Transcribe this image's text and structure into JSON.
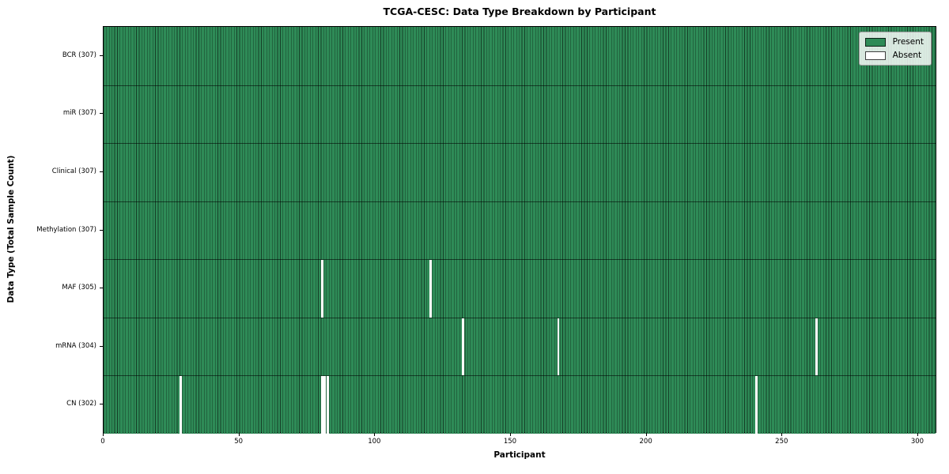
{
  "chart_data": {
    "type": "heatmap",
    "title": "TCGA-CESC: Data Type Breakdown by Participant",
    "xlabel": "Participant",
    "ylabel": "Data Type (Total Sample Count)",
    "n_participants": 307,
    "xlim": [
      0,
      307
    ],
    "x_ticks": [
      0,
      50,
      100,
      150,
      200,
      250,
      300
    ],
    "grid": false,
    "legend": {
      "position": "upper right",
      "items": [
        {
          "label": "Present",
          "color": "#2e8b57"
        },
        {
          "label": "Absent",
          "color": "#ffffff"
        }
      ]
    },
    "rows": [
      {
        "name": "BCR",
        "label": "BCR (307)",
        "total": 307,
        "absent_participants": []
      },
      {
        "name": "miR",
        "label": "miR (307)",
        "total": 307,
        "absent_participants": []
      },
      {
        "name": "Clinical",
        "label": "Clinical (307)",
        "total": 307,
        "absent_participants": []
      },
      {
        "name": "Methylation",
        "label": "Methylation (307)",
        "total": 307,
        "absent_participants": []
      },
      {
        "name": "MAF",
        "label": "MAF (305)",
        "total": 305,
        "absent_participants": [
          80,
          120
        ]
      },
      {
        "name": "mRNA",
        "label": "mRNA (304)",
        "total": 304,
        "absent_participants": [
          132,
          167,
          262
        ]
      },
      {
        "name": "CN",
        "label": "CN (302)",
        "total": 302,
        "absent_participants": [
          28,
          80,
          81,
          82,
          240
        ]
      }
    ],
    "colors": {
      "present": "#2e8b57",
      "absent": "#ffffff",
      "cell_edge": "rgba(0,0,0,0.55)",
      "row_separator": "rgba(0,0,0,0.55)",
      "spine": "#000000"
    }
  }
}
